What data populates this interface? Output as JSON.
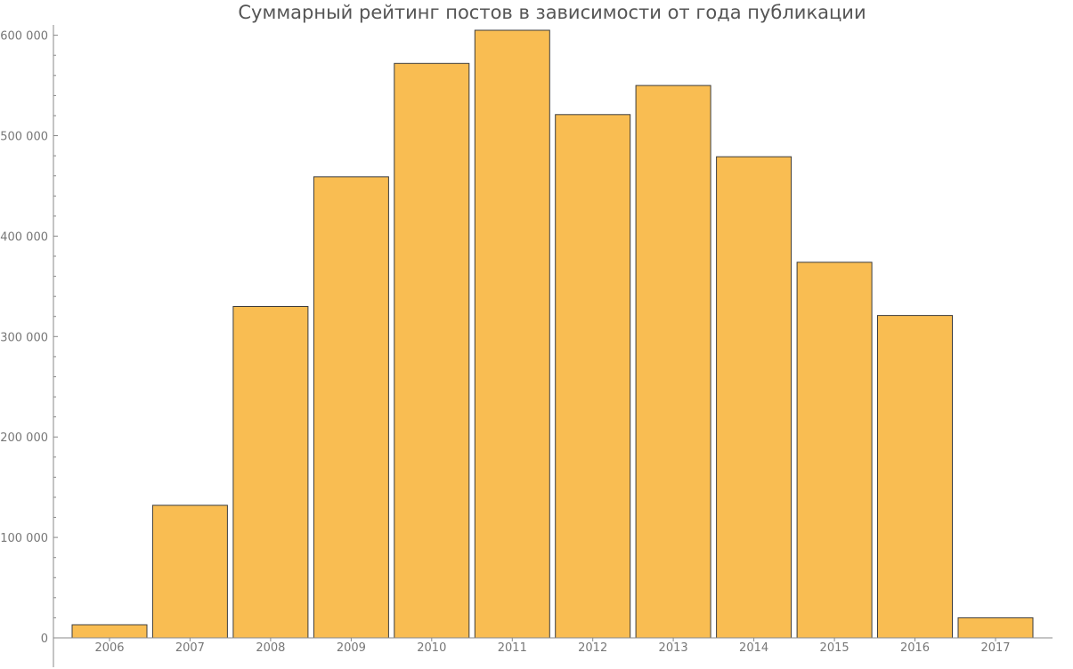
{
  "chart_data": {
    "type": "bar",
    "title": "Суммарный рейтинг постов в зависимости от года публикации",
    "xlabel": "",
    "ylabel": "",
    "categories": [
      "2006",
      "2007",
      "2008",
      "2009",
      "2010",
      "2011",
      "2012",
      "2013",
      "2014",
      "2015",
      "2016",
      "2017"
    ],
    "values": [
      13000,
      132000,
      330000,
      459000,
      572000,
      605000,
      521000,
      550000,
      479000,
      374000,
      321000,
      20000
    ],
    "ylim": [
      0,
      605000
    ],
    "yticks": [
      0,
      100000,
      200000,
      300000,
      400000,
      500000,
      600000
    ],
    "ytick_labels": [
      "0",
      "100 000",
      "200 000",
      "300 000",
      "400 000",
      "500 000",
      "600 000"
    ],
    "grid": false,
    "colors": {
      "bar_fill": "#f9bd52",
      "bar_stroke": "#3c3c3c",
      "axis": "#888888",
      "text": "#777777"
    }
  }
}
